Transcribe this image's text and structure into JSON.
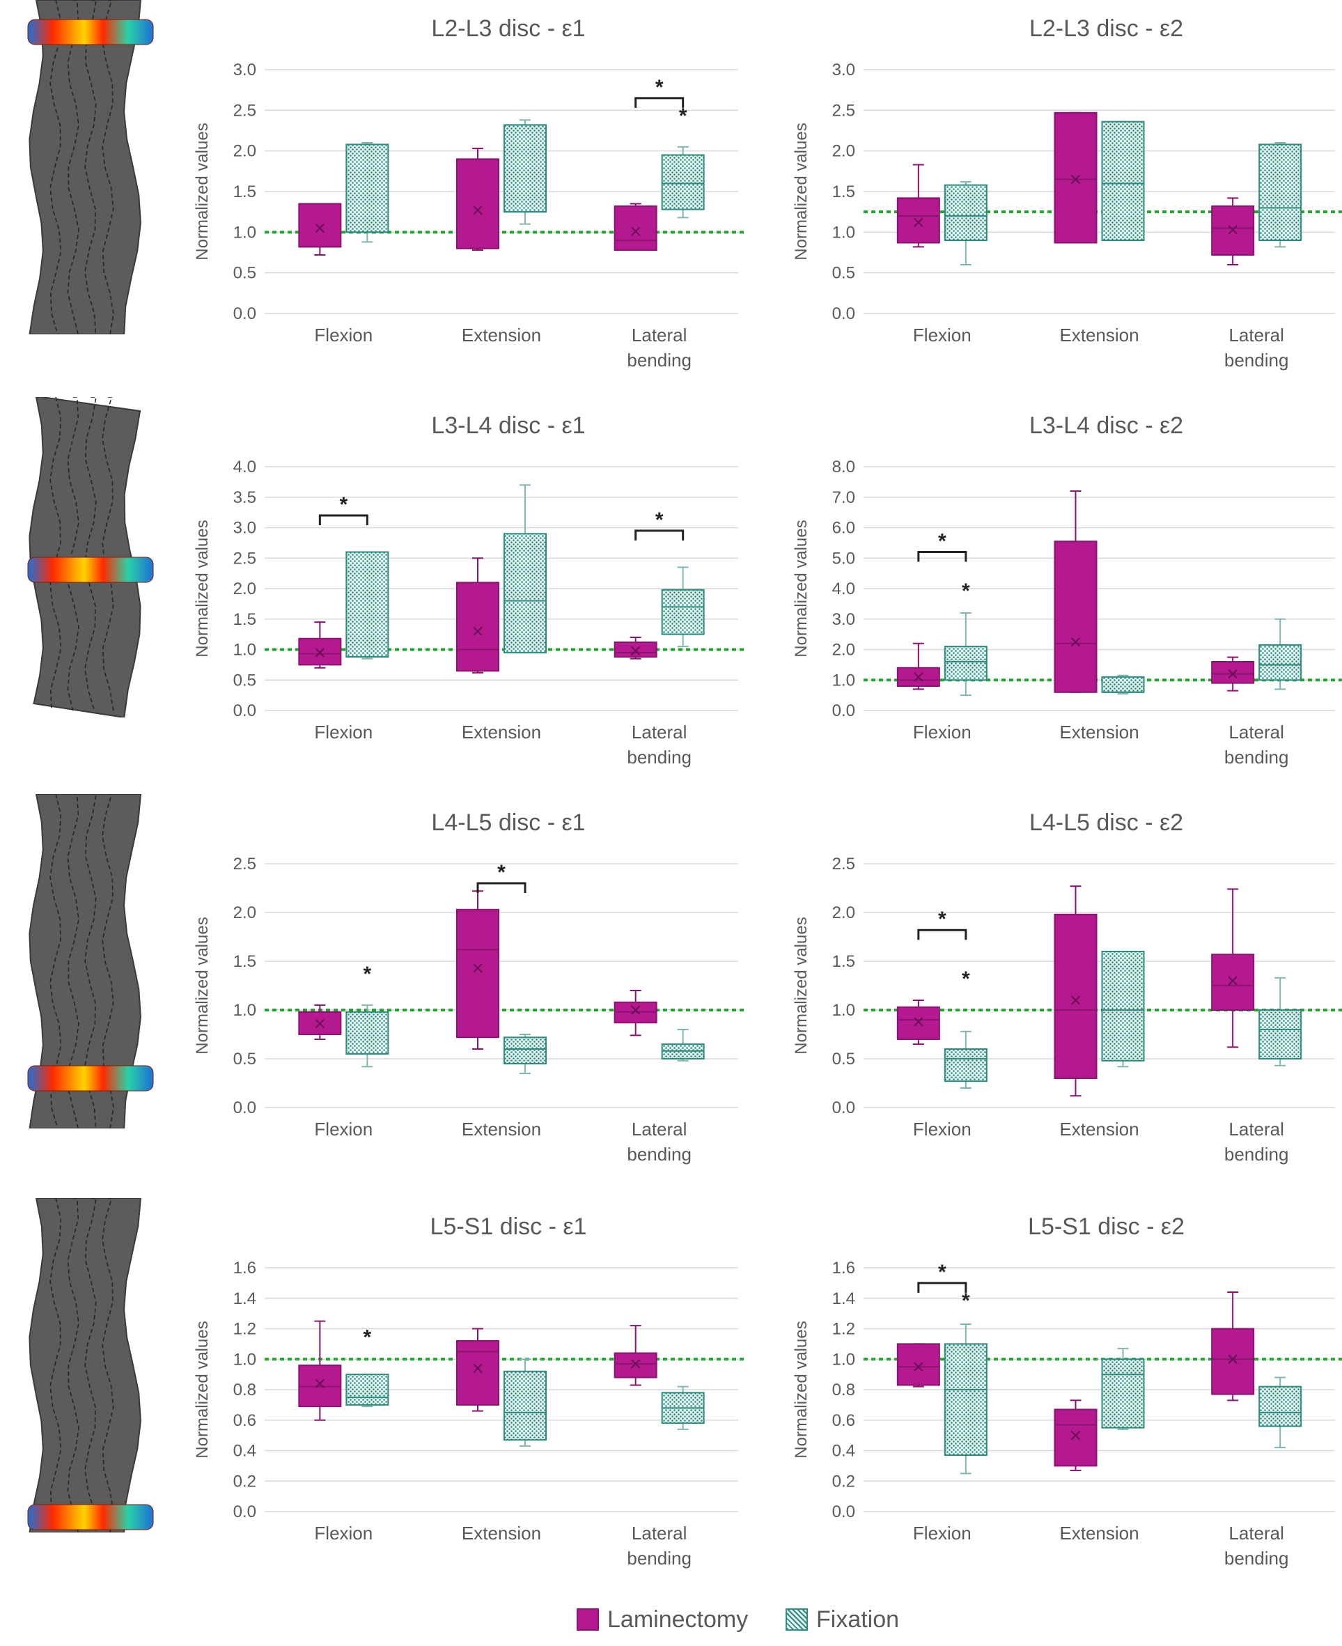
{
  "colors": {
    "laminectomy": "#b5198f",
    "laminectomy_dark": "#8a1370",
    "fixation": "#2e8b7f",
    "fixation_light": "#e6f4f1",
    "reference_line": "#22a52e",
    "grid": "#d9d9d9",
    "text": "#595959"
  },
  "legend": {
    "items": [
      {
        "label": "Laminectomy",
        "series": "laminectomy"
      },
      {
        "label": "Fixation",
        "series": "fixation"
      }
    ]
  },
  "chart_data": [
    {
      "type": "box",
      "title": "L2-L3 disc - ε1",
      "ylabel": "Normalized values",
      "yticks": [
        "0.0",
        "0.5",
        "1.0",
        "1.5",
        "2.0",
        "2.5",
        "3.0"
      ],
      "ylim": [
        0,
        3.0
      ],
      "reference": 1.0,
      "categories": [
        [
          "Flexion"
        ],
        [
          "Extension"
        ],
        [
          "Lateral",
          "bending"
        ]
      ],
      "series": [
        {
          "name": "Laminectomy",
          "boxes": [
            {
              "min": 0.72,
              "q1": 0.82,
              "median": 0.82,
              "q3": 1.35,
              "max": 1.35,
              "mean": 1.05
            },
            {
              "min": 0.78,
              "q1": 0.8,
              "median": 0.8,
              "q3": 1.9,
              "max": 2.03,
              "mean": 1.27
            },
            {
              "min": 0.78,
              "q1": 0.78,
              "median": 0.9,
              "q3": 1.32,
              "max": 1.35,
              "mean": 1.01
            }
          ]
        },
        {
          "name": "Fixation",
          "boxes": [
            {
              "min": 0.88,
              "q1": 1.0,
              "median": 1.0,
              "q3": 2.08,
              "max": 2.1,
              "mean": null
            },
            {
              "min": 1.1,
              "q1": 1.25,
              "median": 1.25,
              "q3": 2.32,
              "max": 2.38,
              "mean": null
            },
            {
              "min": 1.18,
              "q1": 1.28,
              "median": 1.6,
              "q3": 1.95,
              "max": 2.05,
              "mean": null
            }
          ]
        }
      ],
      "annotations": [
        {
          "type": "bracket",
          "category": 2,
          "label": "*",
          "y": 2.65
        },
        {
          "type": "star",
          "category": 2,
          "series": 1,
          "y": 2.35
        }
      ]
    },
    {
      "type": "box",
      "title": "L2-L3 disc - ε2",
      "ylabel": "Normalized values",
      "yticks": [
        "0.0",
        "0.5",
        "1.0",
        "1.5",
        "2.0",
        "2.5",
        "3.0"
      ],
      "ylim": [
        0,
        3.0
      ],
      "reference": 1.25,
      "categories": [
        [
          "Flexion"
        ],
        [
          "Extension"
        ],
        [
          "Lateral",
          "bending"
        ]
      ],
      "series": [
        {
          "name": "Laminectomy",
          "boxes": [
            {
              "min": 0.82,
              "q1": 0.87,
              "median": 1.2,
              "q3": 1.42,
              "max": 1.83,
              "mean": 1.12
            },
            {
              "min": 0.87,
              "q1": 0.87,
              "median": 1.65,
              "q3": 2.47,
              "max": 2.47,
              "mean": 1.65
            },
            {
              "min": 0.6,
              "q1": 0.72,
              "median": 1.05,
              "q3": 1.32,
              "max": 1.42,
              "mean": 1.03
            }
          ]
        },
        {
          "name": "Fixation",
          "boxes": [
            {
              "min": 0.6,
              "q1": 0.9,
              "median": 1.2,
              "q3": 1.58,
              "max": 1.62,
              "mean": null
            },
            {
              "min": 0.9,
              "q1": 0.9,
              "median": 1.6,
              "q3": 2.36,
              "max": 2.36,
              "mean": null
            },
            {
              "min": 0.82,
              "q1": 0.9,
              "median": 1.3,
              "q3": 2.08,
              "max": 2.1,
              "mean": null
            }
          ]
        }
      ],
      "annotations": []
    },
    {
      "type": "box",
      "title": "L3-L4 disc - ε1",
      "ylabel": "Normalized values",
      "yticks": [
        "0.0",
        "0.5",
        "1.0",
        "1.5",
        "2.0",
        "2.5",
        "3.0",
        "3.5",
        "4.0"
      ],
      "ylim": [
        0,
        4.0
      ],
      "reference": 1.0,
      "categories": [
        [
          "Flexion"
        ],
        [
          "Extension"
        ],
        [
          "Lateral",
          "bending"
        ]
      ],
      "series": [
        {
          "name": "Laminectomy",
          "boxes": [
            {
              "min": 0.7,
              "q1": 0.75,
              "median": 0.93,
              "q3": 1.18,
              "max": 1.45,
              "mean": 0.95
            },
            {
              "min": 0.62,
              "q1": 0.65,
              "median": 1.0,
              "q3": 2.1,
              "max": 2.5,
              "mean": 1.3
            },
            {
              "min": 0.85,
              "q1": 0.88,
              "median": 0.95,
              "q3": 1.12,
              "max": 1.2,
              "mean": 0.98
            }
          ]
        },
        {
          "name": "Fixation",
          "boxes": [
            {
              "min": 0.85,
              "q1": 0.88,
              "median": 0.88,
              "q3": 2.6,
              "max": 2.6,
              "mean": null
            },
            {
              "min": 0.95,
              "q1": 0.95,
              "median": 1.8,
              "q3": 2.9,
              "max": 3.7,
              "mean": null
            },
            {
              "min": 1.05,
              "q1": 1.25,
              "median": 1.7,
              "q3": 1.98,
              "max": 2.35,
              "mean": null
            }
          ]
        }
      ],
      "annotations": [
        {
          "type": "bracket",
          "category": 0,
          "label": "*",
          "y": 3.2
        },
        {
          "type": "bracket",
          "category": 2,
          "label": "*",
          "y": 2.95
        }
      ]
    },
    {
      "type": "box",
      "title": "L3-L4 disc - ε2",
      "ylabel": "Normalized values",
      "yticks": [
        "0.0",
        "1.0",
        "2.0",
        "3.0",
        "4.0",
        "5.0",
        "6.0",
        "7.0",
        "8.0"
      ],
      "ylim": [
        0,
        8.0
      ],
      "reference": 1.0,
      "categories": [
        [
          "Flexion"
        ],
        [
          "Extension"
        ],
        [
          "Lateral",
          "bending"
        ]
      ],
      "series": [
        {
          "name": "Laminectomy",
          "boxes": [
            {
              "min": 0.7,
              "q1": 0.8,
              "median": 1.0,
              "q3": 1.4,
              "max": 2.2,
              "mean": 1.1
            },
            {
              "min": 0.6,
              "q1": 0.6,
              "median": 2.2,
              "q3": 5.55,
              "max": 7.2,
              "mean": 2.25
            },
            {
              "min": 0.65,
              "q1": 0.9,
              "median": 1.2,
              "q3": 1.6,
              "max": 1.75,
              "mean": 1.2
            }
          ]
        },
        {
          "name": "Fixation",
          "boxes": [
            {
              "min": 0.5,
              "q1": 1.0,
              "median": 1.6,
              "q3": 2.1,
              "max": 3.2,
              "mean": null
            },
            {
              "min": 0.55,
              "q1": 0.6,
              "median": 0.6,
              "q3": 1.1,
              "max": 1.15,
              "mean": null
            },
            {
              "min": 0.7,
              "q1": 1.0,
              "median": 1.5,
              "q3": 2.15,
              "max": 3.0,
              "mean": null
            }
          ]
        }
      ],
      "annotations": [
        {
          "type": "bracket",
          "category": 0,
          "label": "*",
          "y": 5.2
        },
        {
          "type": "star",
          "category": 0,
          "series": 1,
          "y": 3.7
        }
      ]
    },
    {
      "type": "box",
      "title": "L4-L5 disc - ε1",
      "ylabel": "Normalized values",
      "yticks": [
        "0.0",
        "0.5",
        "1.0",
        "1.5",
        "2.0",
        "2.5"
      ],
      "ylim": [
        0,
        2.5
      ],
      "reference": 1.0,
      "categories": [
        [
          "Flexion"
        ],
        [
          "Extension"
        ],
        [
          "Lateral",
          "bending"
        ]
      ],
      "series": [
        {
          "name": "Laminectomy",
          "boxes": [
            {
              "min": 0.7,
              "q1": 0.75,
              "median": 0.98,
              "q3": 0.98,
              "max": 1.05,
              "mean": 0.86
            },
            {
              "min": 0.6,
              "q1": 0.72,
              "median": 1.62,
              "q3": 2.03,
              "max": 2.22,
              "mean": 1.43
            },
            {
              "min": 0.74,
              "q1": 0.87,
              "median": 0.98,
              "q3": 1.08,
              "max": 1.2,
              "mean": 1.0
            }
          ]
        },
        {
          "name": "Fixation",
          "boxes": [
            {
              "min": 0.42,
              "q1": 0.55,
              "median": 0.55,
              "q3": 0.98,
              "max": 1.05,
              "mean": null
            },
            {
              "min": 0.35,
              "q1": 0.45,
              "median": 0.6,
              "q3": 0.72,
              "max": 0.75,
              "mean": null
            },
            {
              "min": 0.48,
              "q1": 0.5,
              "median": 0.58,
              "q3": 0.65,
              "max": 0.8,
              "mean": null
            }
          ]
        }
      ],
      "annotations": [
        {
          "type": "bracket",
          "category": 1,
          "label": "*",
          "y": 2.3
        },
        {
          "type": "star",
          "category": 0,
          "series": 1,
          "y": 1.3
        }
      ]
    },
    {
      "type": "box",
      "title": "L4-L5 disc - ε2",
      "ylabel": "Normalized values",
      "yticks": [
        "0.0",
        "0.5",
        "1.0",
        "1.5",
        "2.0",
        "2.5"
      ],
      "ylim": [
        0,
        2.5
      ],
      "reference": 1.0,
      "categories": [
        [
          "Flexion"
        ],
        [
          "Extension"
        ],
        [
          "Lateral",
          "bending"
        ]
      ],
      "series": [
        {
          "name": "Laminectomy",
          "boxes": [
            {
              "min": 0.65,
              "q1": 0.7,
              "median": 0.9,
              "q3": 1.03,
              "max": 1.1,
              "mean": 0.88
            },
            {
              "min": 0.12,
              "q1": 0.3,
              "median": 1.0,
              "q3": 1.98,
              "max": 2.27,
              "mean": 1.1
            },
            {
              "min": 0.62,
              "q1": 1.0,
              "median": 1.25,
              "q3": 1.57,
              "max": 2.24,
              "mean": 1.3
            }
          ]
        },
        {
          "name": "Fixation",
          "boxes": [
            {
              "min": 0.2,
              "q1": 0.27,
              "median": 0.5,
              "q3": 0.6,
              "max": 0.78,
              "mean": null
            },
            {
              "min": 0.42,
              "q1": 0.48,
              "median": 1.0,
              "q3": 1.6,
              "max": 1.6,
              "mean": null
            },
            {
              "min": 0.43,
              "q1": 0.5,
              "median": 0.8,
              "q3": 1.0,
              "max": 1.33,
              "mean": null
            }
          ]
        }
      ],
      "annotations": [
        {
          "type": "bracket",
          "category": 0,
          "label": "*",
          "y": 1.82
        },
        {
          "type": "star",
          "category": 0,
          "series": 1,
          "y": 1.25
        }
      ]
    },
    {
      "type": "box",
      "title": "L5-S1 disc - ε1",
      "ylabel": "Normalized values",
      "yticks": [
        "0.0",
        "0.2",
        "0.4",
        "0.6",
        "0.8",
        "1.0",
        "1.2",
        "1.4",
        "1.6"
      ],
      "ylim": [
        0,
        1.6
      ],
      "reference": 1.0,
      "categories": [
        [
          "Flexion"
        ],
        [
          "Extension"
        ],
        [
          "Lateral",
          "bending"
        ]
      ],
      "series": [
        {
          "name": "Laminectomy",
          "boxes": [
            {
              "min": 0.6,
              "q1": 0.69,
              "median": 0.82,
              "q3": 0.96,
              "max": 1.25,
              "mean": 0.84
            },
            {
              "min": 0.66,
              "q1": 0.7,
              "median": 1.05,
              "q3": 1.12,
              "max": 1.2,
              "mean": 0.94
            },
            {
              "min": 0.83,
              "q1": 0.88,
              "median": 0.97,
              "q3": 1.04,
              "max": 1.22,
              "mean": 0.97
            }
          ]
        },
        {
          "name": "Fixation",
          "boxes": [
            {
              "min": 0.69,
              "q1": 0.7,
              "median": 0.75,
              "q3": 0.9,
              "max": 0.9,
              "mean": null
            },
            {
              "min": 0.43,
              "q1": 0.47,
              "median": 0.65,
              "q3": 0.92,
              "max": 1.0,
              "mean": null
            },
            {
              "min": 0.54,
              "q1": 0.58,
              "median": 0.68,
              "q3": 0.78,
              "max": 0.82,
              "mean": null
            }
          ]
        }
      ],
      "annotations": [
        {
          "type": "star",
          "category": 0,
          "series": 1,
          "y": 1.1
        }
      ]
    },
    {
      "type": "box",
      "title": "L5-S1 disc - ε2",
      "ylabel": "Normalized values",
      "yticks": [
        "0.0",
        "0.2",
        "0.4",
        "0.6",
        "0.8",
        "1.0",
        "1.2",
        "1.4",
        "1.6"
      ],
      "ylim": [
        0,
        1.6
      ],
      "reference": 1.0,
      "categories": [
        [
          "Flexion"
        ],
        [
          "Extension"
        ],
        [
          "Lateral",
          "bending"
        ]
      ],
      "series": [
        {
          "name": "Laminectomy",
          "boxes": [
            {
              "min": 0.82,
              "q1": 0.83,
              "median": 0.95,
              "q3": 1.1,
              "max": 1.1,
              "mean": 0.95
            },
            {
              "min": 0.27,
              "q1": 0.3,
              "median": 0.57,
              "q3": 0.67,
              "max": 0.73,
              "mean": 0.5
            },
            {
              "min": 0.73,
              "q1": 0.77,
              "median": 1.0,
              "q3": 1.2,
              "max": 1.44,
              "mean": 1.0
            }
          ]
        },
        {
          "name": "Fixation",
          "boxes": [
            {
              "min": 0.25,
              "q1": 0.37,
              "median": 0.8,
              "q3": 1.1,
              "max": 1.23,
              "mean": null
            },
            {
              "min": 0.54,
              "q1": 0.55,
              "median": 0.9,
              "q3": 1.0,
              "max": 1.07,
              "mean": null
            },
            {
              "min": 0.42,
              "q1": 0.56,
              "median": 0.65,
              "q3": 0.82,
              "max": 0.88,
              "mean": null
            }
          ]
        }
      ],
      "annotations": [
        {
          "type": "bracket",
          "category": 0,
          "label": "*",
          "y": 1.5
        },
        {
          "type": "star",
          "category": 0,
          "series": 1,
          "y": 1.34
        }
      ]
    }
  ]
}
